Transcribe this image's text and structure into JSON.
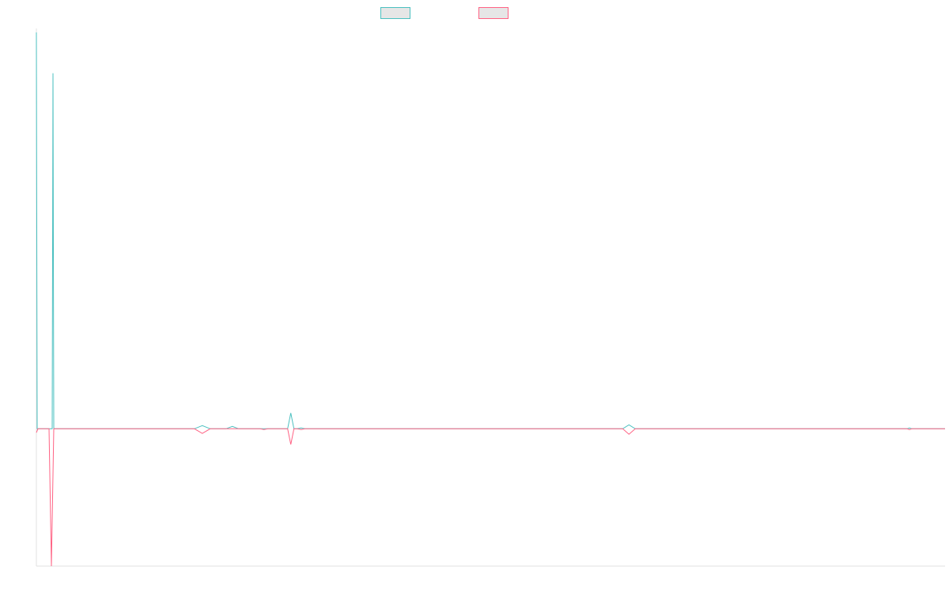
{
  "chart_data": {
    "type": "line",
    "title": "",
    "xlabel": "",
    "ylabel": "",
    "grid": false,
    "legend_position": "top-center",
    "ylim": [
      -175,
      510
    ],
    "series": [
      {
        "name": "",
        "color": "#4bc0c0",
        "points": [
          [
            0,
            505
          ],
          [
            1,
            0
          ],
          [
            20,
            0
          ],
          [
            21,
            453
          ],
          [
            22,
            0
          ],
          [
            200,
            0
          ],
          [
            210,
            4
          ],
          [
            220,
            0
          ],
          [
            240,
            0
          ],
          [
            248,
            3
          ],
          [
            256,
            0
          ],
          [
            318,
            0
          ],
          [
            322,
            20
          ],
          [
            326,
            0
          ],
          [
            330,
            0
          ],
          [
            335,
            1
          ],
          [
            340,
            0
          ],
          [
            742,
            0
          ],
          [
            750,
            5
          ],
          [
            758,
            0
          ],
          [
            1102,
            0
          ],
          [
            1105,
            1
          ],
          [
            1108,
            0
          ],
          [
            1150,
            0
          ]
        ]
      },
      {
        "name": "",
        "color": "#ff6384",
        "points": [
          [
            0,
            -5
          ],
          [
            2,
            0
          ],
          [
            16,
            0
          ],
          [
            19,
            -175
          ],
          [
            22,
            0
          ],
          [
            200,
            0
          ],
          [
            210,
            -6
          ],
          [
            220,
            0
          ],
          [
            283,
            0
          ],
          [
            288,
            -1
          ],
          [
            293,
            0
          ],
          [
            318,
            0
          ],
          [
            322,
            -20
          ],
          [
            326,
            0
          ],
          [
            330,
            0
          ],
          [
            335,
            -1
          ],
          [
            340,
            0
          ],
          [
            742,
            0
          ],
          [
            750,
            -7
          ],
          [
            758,
            0
          ],
          [
            1102,
            0
          ],
          [
            1105,
            -1
          ],
          [
            1108,
            0
          ],
          [
            1150,
            0
          ]
        ]
      }
    ]
  }
}
